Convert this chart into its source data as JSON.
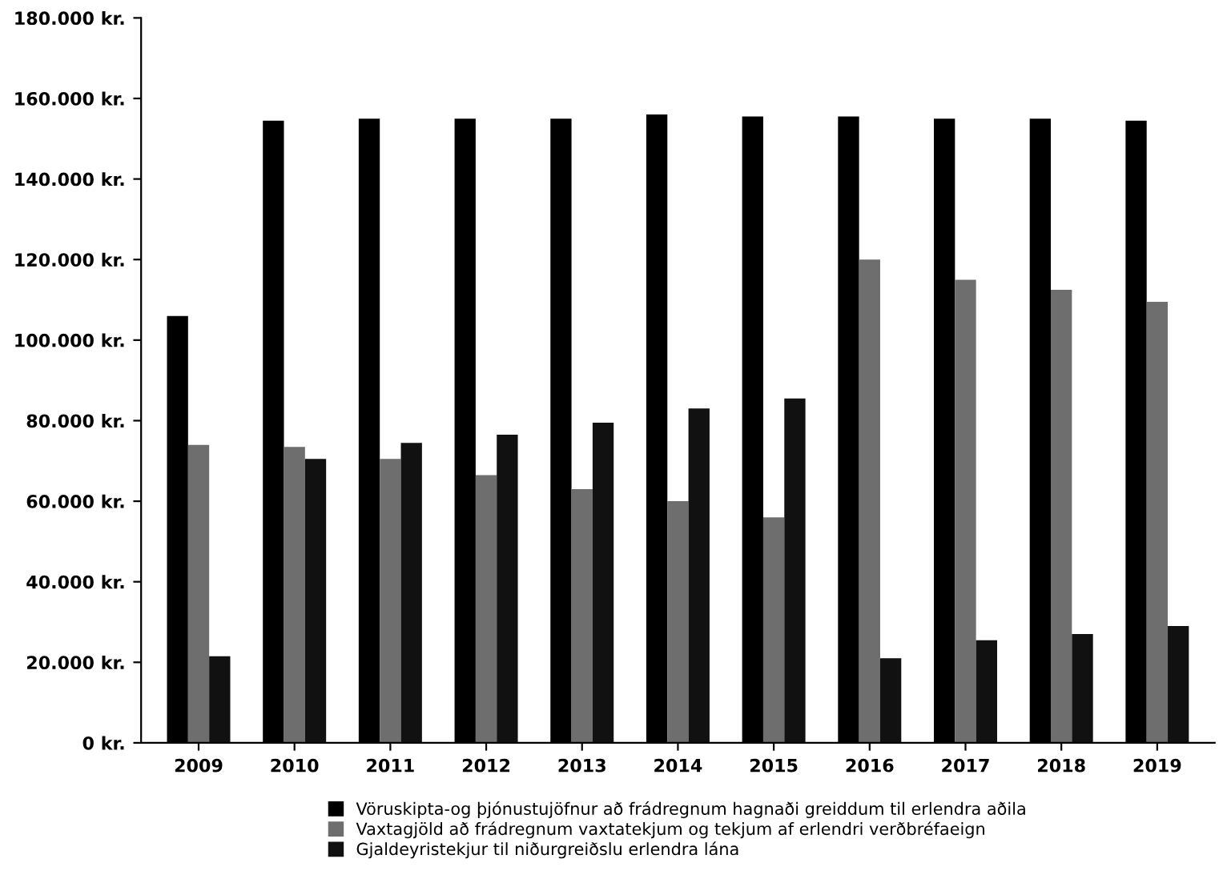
{
  "chart_data": {
    "type": "bar",
    "categories": [
      "2009",
      "2010",
      "2011",
      "2012",
      "2013",
      "2014",
      "2015",
      "2016",
      "2017",
      "2018",
      "2019"
    ],
    "series": [
      {
        "name": "Vöruskipta-og þjónustujöfnur að frádregnum hagnaði greiddum til erlendra aðila",
        "color": "#000000",
        "values": [
          106000,
          154500,
          155000,
          155000,
          155000,
          156000,
          155500,
          155500,
          155000,
          155000,
          154500
        ]
      },
      {
        "name": "Vaxtagjöld að frádregnum vaxtatekjum og tekjum af erlendri verðbréfaeign",
        "color": "#6e6e6e",
        "values": [
          74000,
          73500,
          70500,
          66500,
          63000,
          60000,
          56000,
          120000,
          115000,
          112500,
          109500
        ]
      },
      {
        "name": "Gjaldeyristekjur til niðurgreiðslu erlendra lána",
        "color": "#111111",
        "values": [
          21500,
          70500,
          74500,
          76500,
          79500,
          83000,
          85500,
          21000,
          25500,
          27000,
          29000
        ]
      }
    ],
    "ylim": [
      0,
      180000
    ],
    "yticks": [
      {
        "value": 0,
        "label": "0 kr."
      },
      {
        "value": 20000,
        "label": "20.000 kr."
      },
      {
        "value": 40000,
        "label": "40.000 kr."
      },
      {
        "value": 60000,
        "label": "60.000 kr."
      },
      {
        "value": 80000,
        "label": "80.000 kr."
      },
      {
        "value": 100000,
        "label": "100.000 kr."
      },
      {
        "value": 120000,
        "label": "120.000 kr."
      },
      {
        "value": 140000,
        "label": "140.000 kr."
      },
      {
        "value": 160000,
        "label": "160.000 kr."
      },
      {
        "value": 180000,
        "label": "180.000 kr."
      }
    ],
    "grid": false,
    "legend": "bottom"
  }
}
